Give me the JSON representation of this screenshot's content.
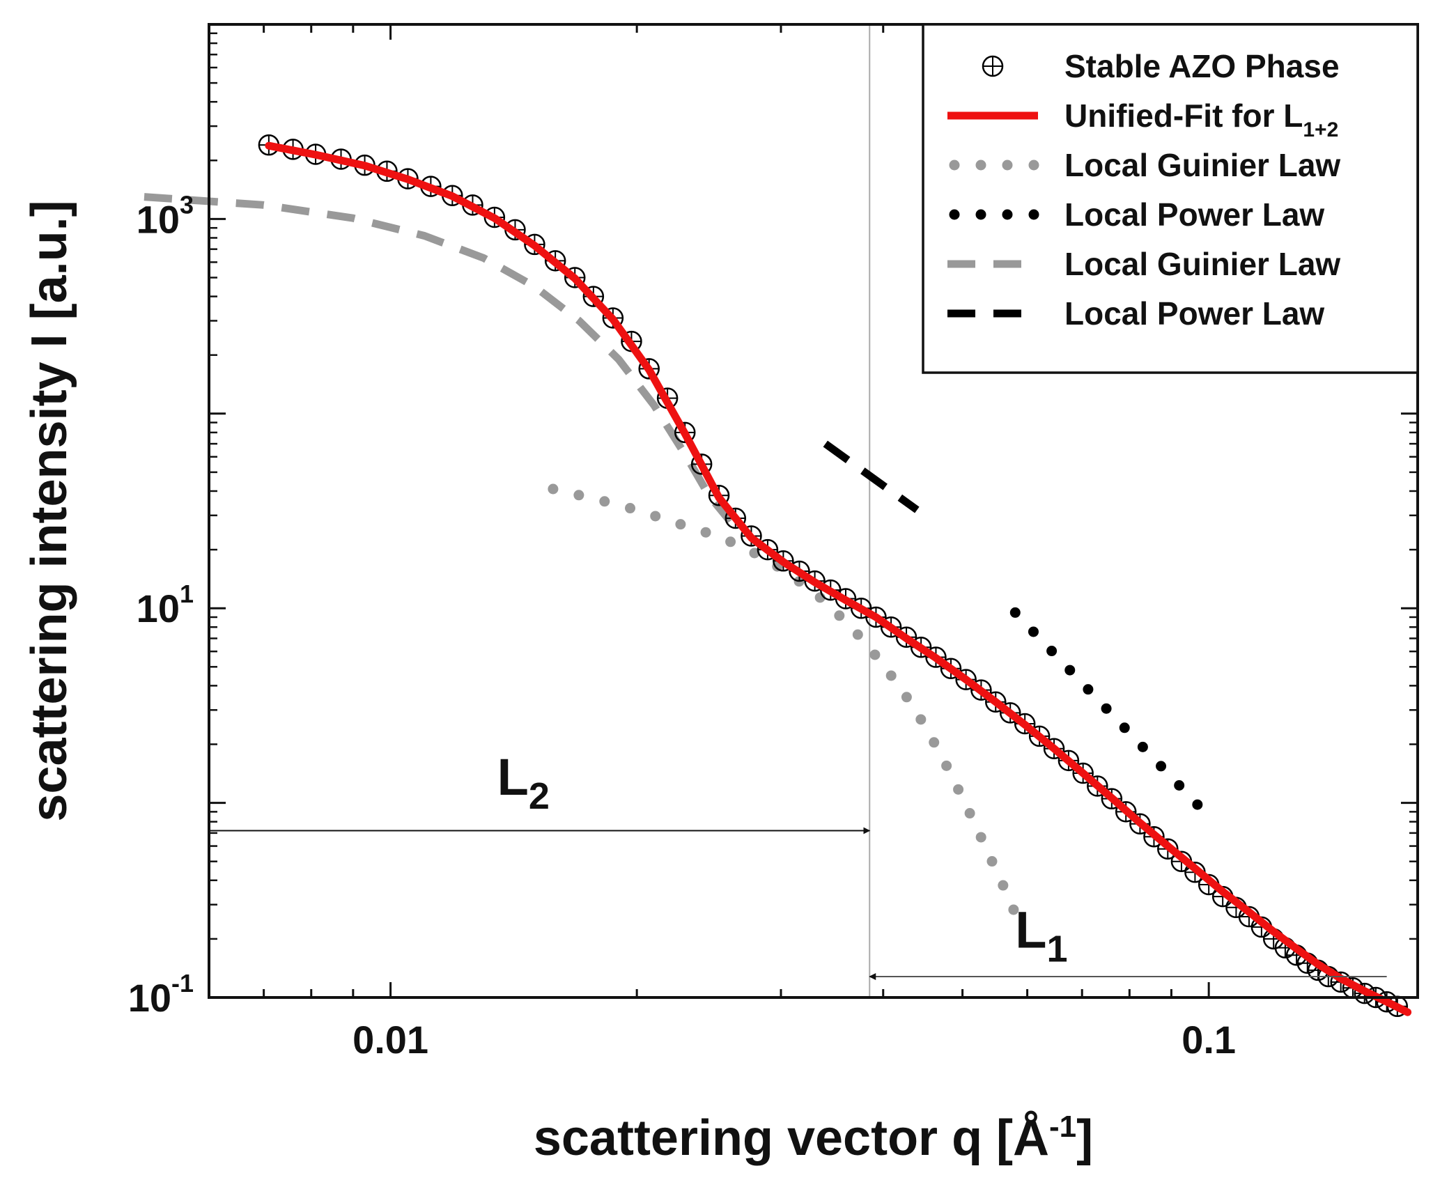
{
  "chart_data": {
    "type": "line",
    "xscale": "log",
    "yscale": "log",
    "xlim": [
      0.006,
      0.18
    ],
    "ylim": [
      0.1,
      10000
    ],
    "xlabel": "scattering vector q [Å",
    "xlabel_sup": "-1",
    "xlabel_end": "]",
    "ylabel": "scattering intensity I [a.u.]",
    "x_ticks": [
      {
        "value": 0.01,
        "label": "0.01"
      },
      {
        "value": 0.1,
        "label": "0.1"
      }
    ],
    "y_ticks": [
      {
        "value": 0.1,
        "base": "10",
        "exp": "-1"
      },
      {
        "value": 10,
        "base": "10",
        "exp": "1"
      },
      {
        "value": 1000,
        "base": "10",
        "exp": "3"
      }
    ],
    "vline_q": 0.0385,
    "series": [
      {
        "name": "Stable AZO Phase",
        "style": "circle-plus",
        "color": "#000000",
        "x": [
          0.0071,
          0.0076,
          0.0081,
          0.0087,
          0.0093,
          0.0099,
          0.0105,
          0.0112,
          0.0119,
          0.0126,
          0.0134,
          0.0142,
          0.015,
          0.0159,
          0.0168,
          0.0177,
          0.0187,
          0.0197,
          0.0207,
          0.0218,
          0.0229,
          0.024,
          0.0252,
          0.0264,
          0.0276,
          0.0289,
          0.0302,
          0.0316,
          0.033,
          0.0345,
          0.036,
          0.0376,
          0.0392,
          0.0409,
          0.0427,
          0.0445,
          0.0464,
          0.0484,
          0.0505,
          0.0527,
          0.0549,
          0.0572,
          0.0596,
          0.0621,
          0.0647,
          0.0674,
          0.0702,
          0.0731,
          0.0761,
          0.0792,
          0.0824,
          0.0857,
          0.0891,
          0.0926,
          0.0962,
          0.1,
          0.104,
          0.108,
          0.112,
          0.116,
          0.12,
          0.124,
          0.128,
          0.132,
          0.136,
          0.14,
          0.145,
          0.15,
          0.155,
          0.16,
          0.165,
          0.17
        ],
        "y": [
          2400,
          2280,
          2150,
          2030,
          1890,
          1760,
          1610,
          1470,
          1320,
          1180,
          1020,
          880,
          740,
          610,
          500,
          400,
          310,
          235,
          170,
          120,
          80,
          55,
          38,
          29,
          23.5,
          20,
          17.5,
          15.5,
          13.8,
          12.4,
          11.2,
          10,
          9,
          8,
          7.1,
          6.3,
          5.6,
          4.9,
          4.3,
          3.8,
          3.3,
          2.9,
          2.55,
          2.2,
          1.9,
          1.65,
          1.42,
          1.22,
          1.05,
          0.9,
          0.78,
          0.67,
          0.58,
          0.5,
          0.44,
          0.38,
          0.33,
          0.29,
          0.26,
          0.23,
          0.2,
          0.18,
          0.165,
          0.15,
          0.138,
          0.128,
          0.12,
          0.112,
          0.105,
          0.1,
          0.095,
          0.09
        ]
      },
      {
        "name": "Unified-Fit for L",
        "sub": "1+2",
        "style": "line",
        "color": "#ee1111",
        "x": [
          0.0071,
          0.0081,
          0.0093,
          0.0105,
          0.0119,
          0.0134,
          0.015,
          0.0168,
          0.0187,
          0.0207,
          0.0229,
          0.0252,
          0.0276,
          0.0302,
          0.033,
          0.036,
          0.0392,
          0.0427,
          0.0464,
          0.0505,
          0.0549,
          0.0596,
          0.0647,
          0.0702,
          0.0761,
          0.0824,
          0.0891,
          0.0962,
          0.104,
          0.112,
          0.12,
          0.128,
          0.136,
          0.145,
          0.155,
          0.165,
          0.175
        ],
        "y": [
          2380,
          2140,
          1880,
          1600,
          1310,
          1010,
          730,
          495,
          305,
          168,
          79,
          37,
          23,
          17.3,
          13.6,
          11,
          9,
          7,
          5.55,
          4.3,
          3.3,
          2.52,
          1.9,
          1.42,
          1.06,
          0.79,
          0.6,
          0.46,
          0.35,
          0.275,
          0.218,
          0.178,
          0.148,
          0.125,
          0.108,
          0.095,
          0.084
        ]
      },
      {
        "name": "Local Guinier Law",
        "style": "dotted",
        "color": "#999999",
        "x": [
          0.0158,
          0.018,
          0.02,
          0.022,
          0.024,
          0.026,
          0.028,
          0.03,
          0.032,
          0.034,
          0.036,
          0.038,
          0.04,
          0.042,
          0.044,
          0.046,
          0.048,
          0.05,
          0.052,
          0.054,
          0.056,
          0.058
        ],
        "y": [
          41,
          36,
          32,
          28,
          25,
          22,
          19,
          16,
          13.2,
          10.8,
          8.5,
          6.7,
          5.1,
          3.9,
          2.9,
          2.1,
          1.5,
          1.06,
          0.75,
          0.53,
          0.38,
          0.27
        ]
      },
      {
        "name": "Local Power Law",
        "style": "dotted",
        "color": "#000000",
        "x": [
          0.058,
          0.1
        ],
        "y": [
          9.5,
          0.85
        ]
      },
      {
        "name": "Local Guinier Law",
        "style": "dashed",
        "color": "#999999",
        "x": [
          0.005,
          0.007,
          0.009,
          0.011,
          0.013,
          0.015,
          0.017,
          0.019,
          0.021,
          0.023,
          0.0245,
          0.026
        ],
        "y": [
          1300,
          1180,
          1010,
          820,
          630,
          450,
          300,
          190,
          110,
          60,
          38,
          28
        ]
      },
      {
        "name": "Local Power Law",
        "style": "dashed",
        "color": "#000000",
        "x": [
          0.034,
          0.044
        ],
        "y": [
          70,
          32
        ]
      }
    ],
    "annotations": [
      {
        "text": "L",
        "sub": "2",
        "label_q": 0.0135,
        "label_I": 1.1,
        "arrow_from_q": 0.006,
        "arrow_to_q": 0.0385,
        "arrow_I": 0.72
      },
      {
        "text": "L",
        "sub": "1",
        "label_q": 0.058,
        "label_I": 0.18,
        "arrow_from_q": 0.165,
        "arrow_to_q": 0.0385,
        "arrow_I": 0.128
      }
    ]
  }
}
